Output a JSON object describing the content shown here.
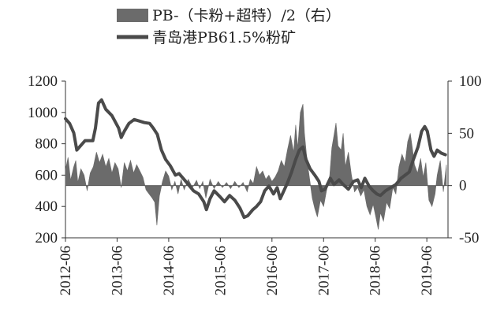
{
  "chart_data": {
    "type": "area+line",
    "legend": [
      {
        "label": "PB-（卡粉+超特）/2（右）",
        "kind": "area",
        "color": "#6b6b6b"
      },
      {
        "label": "青岛港PB61.5%粉矿",
        "kind": "line",
        "color": "#4a4a4a"
      }
    ],
    "x_tick_labels": [
      "2012-06",
      "2013-06",
      "2014-06",
      "2015-06",
      "2016-06",
      "2017-06",
      "2018-06",
      "2019-06"
    ],
    "y_left": {
      "min": 200,
      "max": 1200,
      "ticks": [
        "1200",
        "1000",
        "800",
        "600",
        "400",
        "200"
      ]
    },
    "y_right": {
      "min": -50,
      "max": 100,
      "ticks": [
        "100",
        "50",
        "0",
        "-50"
      ]
    },
    "x_range": [
      2012.42,
      2019.83
    ],
    "series": [
      {
        "name": "青岛港PB61.5%粉矿",
        "axis": "left",
        "points": [
          [
            2012.42,
            960
          ],
          [
            2012.5,
            930
          ],
          [
            2012.58,
            870
          ],
          [
            2012.64,
            760
          ],
          [
            2012.72,
            790
          ],
          [
            2012.8,
            820
          ],
          [
            2012.95,
            820
          ],
          [
            2013.0,
            900
          ],
          [
            2013.06,
            1060
          ],
          [
            2013.12,
            1080
          ],
          [
            2013.2,
            1020
          ],
          [
            2013.32,
            980
          ],
          [
            2013.45,
            900
          ],
          [
            2013.5,
            840
          ],
          [
            2013.56,
            880
          ],
          [
            2013.65,
            930
          ],
          [
            2013.75,
            955
          ],
          [
            2013.85,
            945
          ],
          [
            2013.95,
            935
          ],
          [
            2014.05,
            930
          ],
          [
            2014.12,
            900
          ],
          [
            2014.2,
            860
          ],
          [
            2014.28,
            760
          ],
          [
            2014.36,
            700
          ],
          [
            2014.45,
            660
          ],
          [
            2014.55,
            600
          ],
          [
            2014.62,
            610
          ],
          [
            2014.7,
            580
          ],
          [
            2014.8,
            540
          ],
          [
            2014.9,
            500
          ],
          [
            2015.0,
            480
          ],
          [
            2015.1,
            430
          ],
          [
            2015.15,
            380
          ],
          [
            2015.22,
            450
          ],
          [
            2015.3,
            500
          ],
          [
            2015.42,
            460
          ],
          [
            2015.5,
            430
          ],
          [
            2015.6,
            470
          ],
          [
            2015.7,
            440
          ],
          [
            2015.8,
            390
          ],
          [
            2015.88,
            330
          ],
          [
            2015.95,
            340
          ],
          [
            2016.05,
            380
          ],
          [
            2016.12,
            400
          ],
          [
            2016.2,
            430
          ],
          [
            2016.28,
            500
          ],
          [
            2016.36,
            530
          ],
          [
            2016.45,
            480
          ],
          [
            2016.52,
            520
          ],
          [
            2016.58,
            450
          ],
          [
            2016.65,
            500
          ],
          [
            2016.72,
            550
          ],
          [
            2016.8,
            620
          ],
          [
            2016.88,
            700
          ],
          [
            2016.95,
            760
          ],
          [
            2017.02,
            780
          ],
          [
            2017.08,
            700
          ],
          [
            2017.16,
            640
          ],
          [
            2017.25,
            600
          ],
          [
            2017.33,
            560
          ],
          [
            2017.38,
            500
          ],
          [
            2017.45,
            510
          ],
          [
            2017.55,
            580
          ],
          [
            2017.62,
            540
          ],
          [
            2017.72,
            570
          ],
          [
            2017.8,
            540
          ],
          [
            2017.9,
            510
          ],
          [
            2018.0,
            560
          ],
          [
            2018.08,
            570
          ],
          [
            2018.15,
            520
          ],
          [
            2018.22,
            580
          ],
          [
            2018.3,
            530
          ],
          [
            2018.38,
            500
          ],
          [
            2018.45,
            480
          ],
          [
            2018.52,
            470
          ],
          [
            2018.62,
            500
          ],
          [
            2018.72,
            520
          ],
          [
            2018.82,
            540
          ],
          [
            2018.92,
            580
          ],
          [
            2019.0,
            600
          ],
          [
            2019.08,
            620
          ],
          [
            2019.16,
            700
          ],
          [
            2019.25,
            780
          ],
          [
            2019.32,
            880
          ],
          [
            2019.38,
            910
          ],
          [
            2019.43,
            880
          ],
          [
            2019.5,
            760
          ],
          [
            2019.56,
            720
          ],
          [
            2019.62,
            760
          ],
          [
            2019.7,
            740
          ],
          [
            2019.78,
            730
          ]
        ]
      },
      {
        "name": "PB-（卡粉+超特）/2（右）",
        "axis": "right",
        "points": [
          [
            2012.42,
            15
          ],
          [
            2012.47,
            27
          ],
          [
            2012.52,
            5
          ],
          [
            2012.58,
            18
          ],
          [
            2012.62,
            24
          ],
          [
            2012.66,
            3
          ],
          [
            2012.72,
            16
          ],
          [
            2012.78,
            10
          ],
          [
            2012.84,
            -5
          ],
          [
            2012.9,
            12
          ],
          [
            2012.96,
            18
          ],
          [
            2013.02,
            32
          ],
          [
            2013.08,
            22
          ],
          [
            2013.14,
            30
          ],
          [
            2013.2,
            18
          ],
          [
            2013.26,
            26
          ],
          [
            2013.32,
            12
          ],
          [
            2013.38,
            22
          ],
          [
            2013.44,
            16
          ],
          [
            2013.5,
            -2
          ],
          [
            2013.56,
            22
          ],
          [
            2013.62,
            14
          ],
          [
            2013.68,
            24
          ],
          [
            2013.74,
            12
          ],
          [
            2013.8,
            20
          ],
          [
            2013.86,
            14
          ],
          [
            2013.92,
            8
          ],
          [
            2013.98,
            -4
          ],
          [
            2014.04,
            -8
          ],
          [
            2014.1,
            -12
          ],
          [
            2014.15,
            -16
          ],
          [
            2014.19,
            -38
          ],
          [
            2014.24,
            -10
          ],
          [
            2014.3,
            4
          ],
          [
            2014.36,
            14
          ],
          [
            2014.42,
            9
          ],
          [
            2014.48,
            -4
          ],
          [
            2014.54,
            4
          ],
          [
            2014.6,
            -8
          ],
          [
            2014.66,
            6
          ],
          [
            2014.72,
            -4
          ],
          [
            2014.8,
            6
          ],
          [
            2014.88,
            -2
          ],
          [
            2014.96,
            5
          ],
          [
            2015.02,
            -3
          ],
          [
            2015.08,
            4
          ],
          [
            2015.14,
            -12
          ],
          [
            2015.22,
            6
          ],
          [
            2015.3,
            -3
          ],
          [
            2015.38,
            4
          ],
          [
            2015.46,
            -2
          ],
          [
            2015.54,
            3
          ],
          [
            2015.62,
            -3
          ],
          [
            2015.7,
            4
          ],
          [
            2015.78,
            -2
          ],
          [
            2015.86,
            3
          ],
          [
            2015.94,
            -6
          ],
          [
            2016.0,
            6
          ],
          [
            2016.06,
            2
          ],
          [
            2016.12,
            18
          ],
          [
            2016.18,
            10
          ],
          [
            2016.24,
            14
          ],
          [
            2016.3,
            6
          ],
          [
            2016.36,
            10
          ],
          [
            2016.42,
            4
          ],
          [
            2016.48,
            8
          ],
          [
            2016.54,
            14
          ],
          [
            2016.6,
            24
          ],
          [
            2016.66,
            18
          ],
          [
            2016.72,
            34
          ],
          [
            2016.78,
            48
          ],
          [
            2016.84,
            32
          ],
          [
            2016.88,
            58
          ],
          [
            2016.92,
            36
          ],
          [
            2016.97,
            70
          ],
          [
            2017.02,
            78
          ],
          [
            2017.05,
            50
          ],
          [
            2017.1,
            24
          ],
          [
            2017.15,
            6
          ],
          [
            2017.2,
            -12
          ],
          [
            2017.25,
            -22
          ],
          [
            2017.3,
            -30
          ],
          [
            2017.36,
            -14
          ],
          [
            2017.42,
            -20
          ],
          [
            2017.48,
            -4
          ],
          [
            2017.54,
            10
          ],
          [
            2017.58,
            36
          ],
          [
            2017.62,
            48
          ],
          [
            2017.66,
            60
          ],
          [
            2017.7,
            38
          ],
          [
            2017.76,
            34
          ],
          [
            2017.8,
            50
          ],
          [
            2017.84,
            18
          ],
          [
            2017.9,
            32
          ],
          [
            2017.96,
            10
          ],
          [
            2018.02,
            -6
          ],
          [
            2018.08,
            -2
          ],
          [
            2018.14,
            -10
          ],
          [
            2018.2,
            -4
          ],
          [
            2018.26,
            -20
          ],
          [
            2018.32,
            -28
          ],
          [
            2018.38,
            -18
          ],
          [
            2018.44,
            -32
          ],
          [
            2018.48,
            -42
          ],
          [
            2018.52,
            -26
          ],
          [
            2018.58,
            -34
          ],
          [
            2018.64,
            -16
          ],
          [
            2018.7,
            -22
          ],
          [
            2018.76,
            -2
          ],
          [
            2018.82,
            -8
          ],
          [
            2018.88,
            18
          ],
          [
            2018.94,
            30
          ],
          [
            2019.0,
            22
          ],
          [
            2019.05,
            42
          ],
          [
            2019.1,
            50
          ],
          [
            2019.14,
            36
          ],
          [
            2019.18,
            20
          ],
          [
            2019.24,
            12
          ],
          [
            2019.3,
            26
          ],
          [
            2019.35,
            8
          ],
          [
            2019.4,
            22
          ],
          [
            2019.46,
            -14
          ],
          [
            2019.52,
            -20
          ],
          [
            2019.58,
            -8
          ],
          [
            2019.62,
            10
          ],
          [
            2019.68,
            24
          ],
          [
            2019.74,
            -6
          ],
          [
            2019.8,
            20
          ]
        ]
      }
    ]
  }
}
